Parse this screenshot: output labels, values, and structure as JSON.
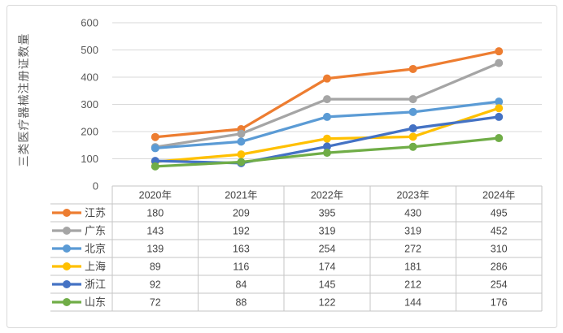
{
  "chart": {
    "y_axis_title": "三类医疗器械注册证数量",
    "colors": {
      "gridline": "#d9d9d9",
      "frame_border": "#d9d9d9",
      "table_border": "#c6c6c6",
      "axis_label": "#595959",
      "table_text": "#444444"
    }
  },
  "chart_data": {
    "type": "line",
    "title": "",
    "ylabel": "三类医疗器械注册证数量",
    "xlabel": "",
    "categories": [
      "2020年",
      "2021年",
      "2022年",
      "2023年",
      "2024年"
    ],
    "series": [
      {
        "name": "江苏",
        "color": "#ED7D31",
        "values": [
          180,
          209,
          395,
          430,
          495
        ]
      },
      {
        "name": "广东",
        "color": "#A5A5A5",
        "values": [
          143,
          192,
          319,
          319,
          452
        ]
      },
      {
        "name": "北京",
        "color": "#5B9BD5",
        "values": [
          139,
          163,
          254,
          272,
          310
        ]
      },
      {
        "name": "上海",
        "color": "#FFC000",
        "values": [
          89,
          116,
          174,
          181,
          286
        ]
      },
      {
        "name": "浙江",
        "color": "#4472C4",
        "values": [
          92,
          84,
          145,
          212,
          254
        ]
      },
      {
        "name": "山东",
        "color": "#70AD47",
        "values": [
          72,
          88,
          122,
          144,
          176
        ]
      }
    ],
    "ylim": [
      0,
      600
    ],
    "y_ticks": [
      0,
      100,
      200,
      300,
      400,
      500,
      600
    ],
    "grid": "horizontal",
    "marker": "circle",
    "legend_position": "data-table-left",
    "data_table": true
  }
}
